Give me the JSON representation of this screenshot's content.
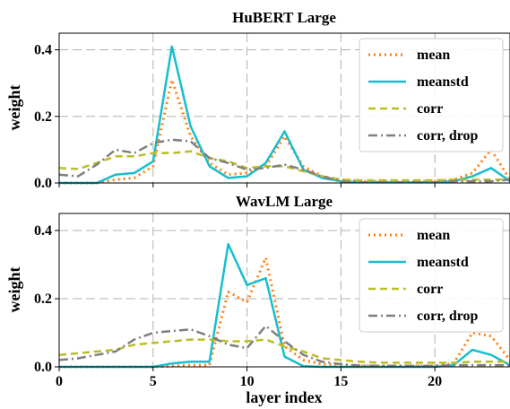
{
  "chart_data": [
    {
      "type": "line",
      "title": "HuBERT Large",
      "ylabel": "weight",
      "xlabel": "",
      "xlim": [
        0,
        24
      ],
      "ylim": [
        0,
        0.45
      ],
      "x_ticks": [
        0,
        5,
        10,
        15,
        20
      ],
      "y_ticks": [
        0.0,
        0.2,
        0.4
      ],
      "y_tick_labels": [
        "0.0",
        "0.2",
        "0.4"
      ],
      "grid": true,
      "legend_position": "top-right",
      "x": [
        0,
        1,
        2,
        3,
        4,
        5,
        6,
        7,
        8,
        9,
        10,
        11,
        12,
        13,
        14,
        15,
        16,
        17,
        18,
        19,
        20,
        21,
        22,
        23,
        24
      ],
      "series": [
        {
          "name": "mean",
          "color": "#ff7f0e",
          "style": "dotted",
          "values": [
            0.0,
            0.0,
            0.0,
            0.01,
            0.015,
            0.05,
            0.31,
            0.14,
            0.06,
            0.025,
            0.03,
            0.05,
            0.14,
            0.05,
            0.02,
            0.01,
            0.005,
            0.005,
            0.005,
            0.005,
            0.005,
            0.01,
            0.03,
            0.1,
            0.01
          ]
        },
        {
          "name": "meanstd",
          "color": "#17becf",
          "style": "solid",
          "values": [
            0.0,
            0.0,
            0.0,
            0.025,
            0.03,
            0.065,
            0.41,
            0.17,
            0.05,
            0.015,
            0.02,
            0.06,
            0.155,
            0.04,
            0.015,
            0.005,
            0.002,
            0.002,
            0.002,
            0.002,
            0.002,
            0.005,
            0.02,
            0.045,
            0.005
          ]
        },
        {
          "name": "corr",
          "color": "#bcbd22",
          "style": "dashed",
          "values": [
            0.045,
            0.042,
            0.06,
            0.08,
            0.08,
            0.09,
            0.09,
            0.095,
            0.075,
            0.065,
            0.045,
            0.05,
            0.05,
            0.035,
            0.02,
            0.01,
            0.008,
            0.008,
            0.008,
            0.008,
            0.008,
            0.01,
            0.01,
            0.01,
            0.01
          ]
        },
        {
          "name": "corr, drop",
          "color": "#7f7f7f",
          "style": "dashdot",
          "values": [
            0.025,
            0.02,
            0.055,
            0.1,
            0.09,
            0.12,
            0.13,
            0.125,
            0.075,
            0.06,
            0.04,
            0.045,
            0.055,
            0.04,
            0.02,
            0.005,
            0.002,
            0.002,
            0.002,
            0.002,
            0.002,
            0.005,
            0.005,
            0.005,
            0.01
          ]
        }
      ]
    },
    {
      "type": "line",
      "title": "WavLM Large",
      "ylabel": "weight",
      "xlabel": "layer index",
      "xlim": [
        0,
        24
      ],
      "ylim": [
        0,
        0.45
      ],
      "x_ticks": [
        0,
        5,
        10,
        15,
        20
      ],
      "y_ticks": [
        0.0,
        0.2,
        0.4
      ],
      "y_tick_labels": [
        "0.0",
        "0.2",
        "0.4"
      ],
      "grid": true,
      "legend_position": "top-right",
      "x": [
        0,
        1,
        2,
        3,
        4,
        5,
        6,
        7,
        8,
        9,
        10,
        11,
        12,
        13,
        14,
        15,
        16,
        17,
        18,
        19,
        20,
        21,
        22,
        23,
        24
      ],
      "series": [
        {
          "name": "mean",
          "color": "#ff7f0e",
          "style": "dotted",
          "values": [
            0.0,
            0.0,
            0.0,
            0.0,
            0.0,
            0.0,
            0.002,
            0.005,
            0.005,
            0.22,
            0.19,
            0.32,
            0.06,
            0.02,
            0.008,
            0.005,
            0.003,
            0.003,
            0.003,
            0.003,
            0.003,
            0.01,
            0.1,
            0.09,
            0.02
          ]
        },
        {
          "name": "meanstd",
          "color": "#17becf",
          "style": "solid",
          "values": [
            0.0,
            0.0,
            0.0,
            0.0,
            0.0,
            0.0,
            0.01,
            0.015,
            0.015,
            0.36,
            0.24,
            0.26,
            0.03,
            0.002,
            0.0,
            0.0,
            0.0,
            0.0,
            0.0,
            0.0,
            0.0,
            0.005,
            0.05,
            0.035,
            0.005
          ]
        },
        {
          "name": "corr",
          "color": "#bcbd22",
          "style": "dashed",
          "values": [
            0.035,
            0.04,
            0.045,
            0.05,
            0.065,
            0.07,
            0.075,
            0.08,
            0.08,
            0.075,
            0.075,
            0.08,
            0.06,
            0.045,
            0.025,
            0.02,
            0.015,
            0.012,
            0.012,
            0.012,
            0.012,
            0.012,
            0.015,
            0.015,
            0.015
          ]
        },
        {
          "name": "corr, drop",
          "color": "#7f7f7f",
          "style": "dashdot",
          "values": [
            0.02,
            0.025,
            0.035,
            0.045,
            0.08,
            0.1,
            0.105,
            0.11,
            0.09,
            0.065,
            0.055,
            0.12,
            0.075,
            0.035,
            0.015,
            0.008,
            0.004,
            0.003,
            0.003,
            0.003,
            0.003,
            0.005,
            0.005,
            0.005,
            0.005
          ]
        }
      ]
    }
  ]
}
